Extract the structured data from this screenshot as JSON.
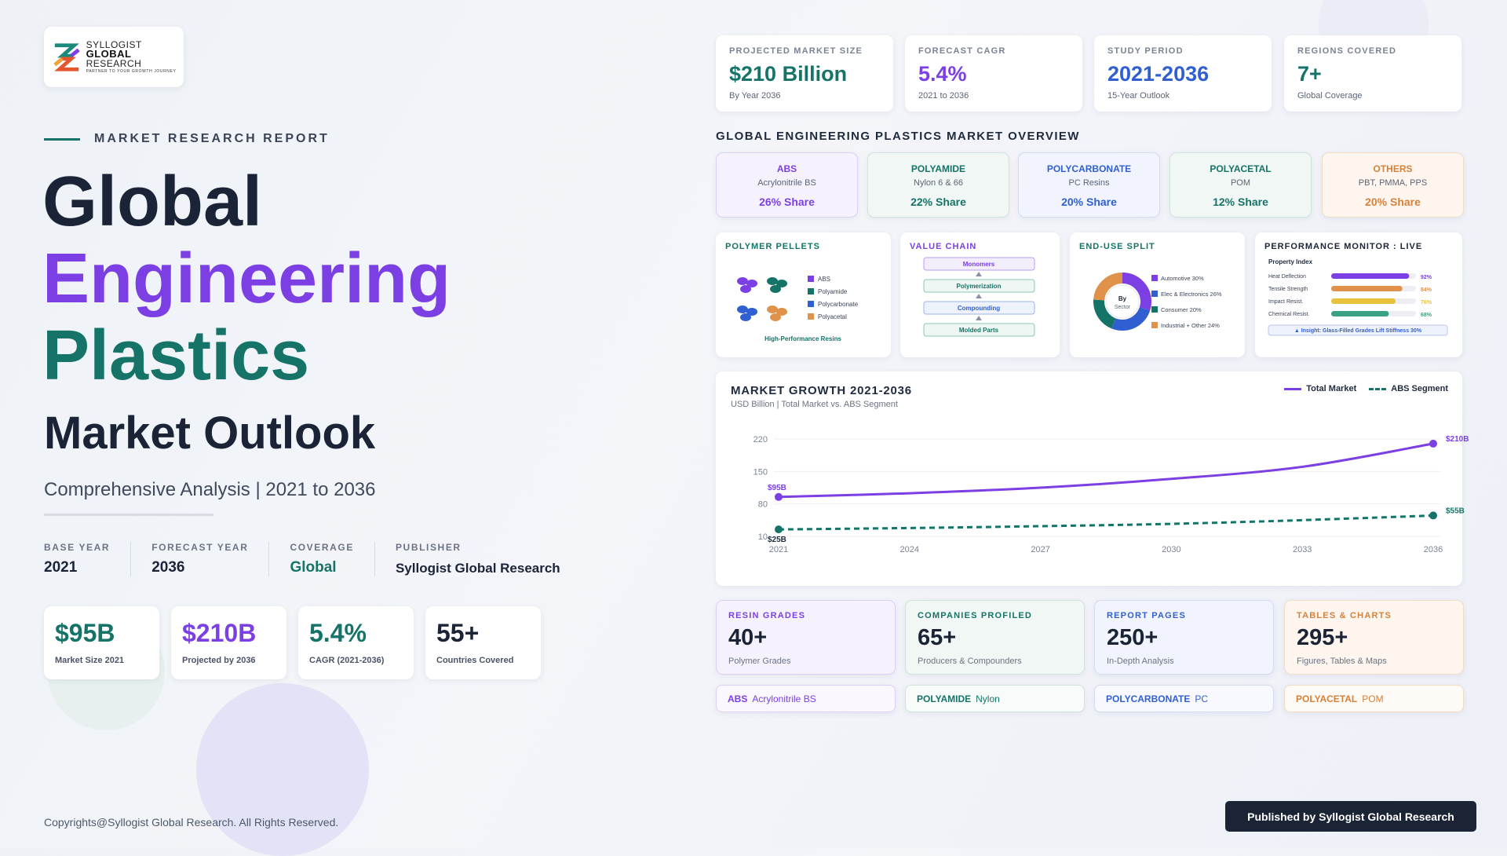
{
  "logo": {
    "line1": "SYLLOGIST",
    "line2": "GLOBAL",
    "line3": "RESEARCH",
    "tagline": "PARTNER TO YOUR GROWTH JOURNEY"
  },
  "hero": {
    "eyebrow": "MARKET RESEARCH REPORT",
    "title_line1": "Global",
    "title_line2": "Engineering",
    "title_line3": "Plastics",
    "subtitle": "Market Outlook",
    "tagline": "Comprehensive Analysis  |  2021 to 2036"
  },
  "meta": [
    {
      "label": "BASE YEAR",
      "value": "2021"
    },
    {
      "label": "FORECAST YEAR",
      "value": "2036"
    },
    {
      "label": "COVERAGE",
      "value": "Global"
    },
    {
      "label": "PUBLISHER",
      "value": "Syllogist Global Research"
    }
  ],
  "stats": [
    {
      "value": "$95B",
      "caption": "Market Size 2021",
      "color": "#157367"
    },
    {
      "value": "$210B",
      "caption": "Projected by 2036",
      "color": "#7b3fe4"
    },
    {
      "value": "5.4%",
      "caption": "CAGR (2021-2036)",
      "color": "#157367"
    },
    {
      "value": "55+",
      "caption": "Countries Covered",
      "color": "#1b2437"
    }
  ],
  "kpis": [
    {
      "label": "PROJECTED MARKET SIZE",
      "value": "$210 Billion",
      "sub": "By Year 2036",
      "color": "#157367"
    },
    {
      "label": "FORECAST CAGR",
      "value": "5.4%",
      "sub": "2021 to 2036",
      "color": "#7b3fe4"
    },
    {
      "label": "STUDY PERIOD",
      "value": "2021-2036",
      "sub": "15-Year Outlook",
      "color": "#2f5fd0"
    },
    {
      "label": "REGIONS COVERED",
      "value": "7+",
      "sub": "Global Coverage",
      "color": "#157367"
    }
  ],
  "overview_title": "GLOBAL ENGINEERING PLASTICS MARKET OVERVIEW",
  "segments": [
    {
      "name": "ABS",
      "desc": "Acrylonitrile BS",
      "share": "26% Share",
      "color": "#7b3fe4",
      "bg": "#f6f2fd",
      "border": "#ddd0f6"
    },
    {
      "name": "POLYAMIDE",
      "desc": "Nylon 6 & 66",
      "share": "22% Share",
      "color": "#157367",
      "bg": "#f0f7f4",
      "border": "#cfe4dc"
    },
    {
      "name": "POLYCARBONATE",
      "desc": "PC Resins",
      "share": "20% Share",
      "color": "#2f5fd0",
      "bg": "#f1f4fc",
      "border": "#d3dcf2"
    },
    {
      "name": "POLYACETAL",
      "desc": "POM",
      "share": "12% Share",
      "color": "#157367",
      "bg": "#f0f7f4",
      "border": "#cfe4dc"
    },
    {
      "name": "OTHERS",
      "desc": "PBT, PMMA, PPS",
      "share": "20% Share",
      "color": "#d6813a",
      "bg": "#fdf5ee",
      "border": "#f1dcc6"
    }
  ],
  "pellets": {
    "title": "POLYMER PELLETS",
    "legend": [
      "ABS",
      "Polyamide",
      "Polycarbonate",
      "Polyacetal"
    ],
    "colors": [
      "#7b3fe4",
      "#157367",
      "#2f5fd0",
      "#e0924a"
    ],
    "caption": "High-Performance Resins"
  },
  "value_chain": {
    "title": "VALUE CHAIN",
    "steps": [
      "Monomers",
      "Polymerization",
      "Compounding",
      "Molded Parts"
    ]
  },
  "end_use": {
    "title": "END-USE SPLIT",
    "center_line1": "By",
    "center_line2": "Sector",
    "slices": [
      {
        "label": "Automotive 30%",
        "value": 30,
        "color": "#7b3fe4"
      },
      {
        "label": "Elec & Electronics 26%",
        "value": 26,
        "color": "#2f5fd0"
      },
      {
        "label": "Consumer 20%",
        "value": 20,
        "color": "#157367"
      },
      {
        "label": "Industrial + Other 24%",
        "value": 24,
        "color": "#e0924a"
      }
    ]
  },
  "performance": {
    "title": "PERFORMANCE MONITOR : LIVE",
    "header": "Property Index",
    "rows": [
      {
        "label": "Heat Deflection",
        "value": 92,
        "text": "92%",
        "color": "#7b3fe4"
      },
      {
        "label": "Tensile Strength",
        "value": 84,
        "text": "84%",
        "color": "#e0924a"
      },
      {
        "label": "Impact Resist.",
        "value": 76,
        "text": "76%",
        "color": "#e8c23a"
      },
      {
        "label": "Chemical Resist.",
        "value": 68,
        "text": "68%",
        "color": "#3aa184"
      }
    ],
    "insight": "▲ Insight: Glass-Filled Grades Lift Stiffness 30%"
  },
  "chart_data": {
    "type": "line",
    "title": "MARKET GROWTH 2021-2036",
    "subtitle": "USD Billion  |  Total Market vs. ABS Segment",
    "x": [
      2021,
      2024,
      2027,
      2030,
      2033,
      2036
    ],
    "xticks": [
      "2021",
      "2024",
      "2027",
      "2030",
      "2033",
      "2036"
    ],
    "yticks": [
      10,
      80,
      150,
      220
    ],
    "ylim": [
      10,
      220
    ],
    "xlim": [
      2021,
      2036
    ],
    "grid": true,
    "legend_position": "top-right",
    "series": [
      {
        "name": "Total Market",
        "values": [
          95,
          103,
          115,
          134,
          160,
          210
        ],
        "color": "#7b3fe4",
        "style": "solid",
        "start_label": "$95B",
        "end_label": "$210B"
      },
      {
        "name": "ABS Segment",
        "values": [
          25,
          28,
          32,
          37,
          45,
          55
        ],
        "color": "#157367",
        "style": "dashed",
        "start_label": "$25B",
        "end_label": "$55B"
      }
    ]
  },
  "summary": [
    {
      "label": "RESIN GRADES",
      "value": "40+",
      "sub": "Polymer Grades",
      "color": "#7b3fe4",
      "bg": "#f6f2fd",
      "border": "#ddd0f6"
    },
    {
      "label": "COMPANIES PROFILED",
      "value": "65+",
      "sub": "Producers & Compounders",
      "color": "#157367",
      "bg": "#f0f7f4",
      "border": "#cfe4dc"
    },
    {
      "label": "REPORT PAGES",
      "value": "250+",
      "sub": "In-Depth Analysis",
      "color": "#2f5fd0",
      "bg": "#f1f4fc",
      "border": "#d3dcf2"
    },
    {
      "label": "TABLES & CHARTS",
      "value": "295+",
      "sub": "Figures, Tables & Maps",
      "color": "#d6813a",
      "bg": "#fdf5ee",
      "border": "#f1dcc6"
    }
  ],
  "pills": [
    {
      "a": "ABS",
      "b": "Acrylonitrile BS",
      "color": "#7b3fe4",
      "border": "#ddd0f6",
      "bg": "#faf7fe"
    },
    {
      "a": "POLYAMIDE",
      "b": "Nylon",
      "color": "#157367",
      "border": "#cfe4dc",
      "bg": "#f7fbf9"
    },
    {
      "a": "POLYCARBONATE",
      "b": "PC",
      "color": "#2f5fd0",
      "border": "#d3dcf2",
      "bg": "#f8f9fe"
    },
    {
      "a": "POLYACETAL",
      "b": "POM",
      "color": "#d6813a",
      "border": "#f1dcc6",
      "bg": "#fefaf6"
    }
  ],
  "footer": {
    "copyright": "Copyrights@Syllogist Global Research. All Rights Reserved.",
    "badge": "Published by Syllogist Global Research"
  }
}
